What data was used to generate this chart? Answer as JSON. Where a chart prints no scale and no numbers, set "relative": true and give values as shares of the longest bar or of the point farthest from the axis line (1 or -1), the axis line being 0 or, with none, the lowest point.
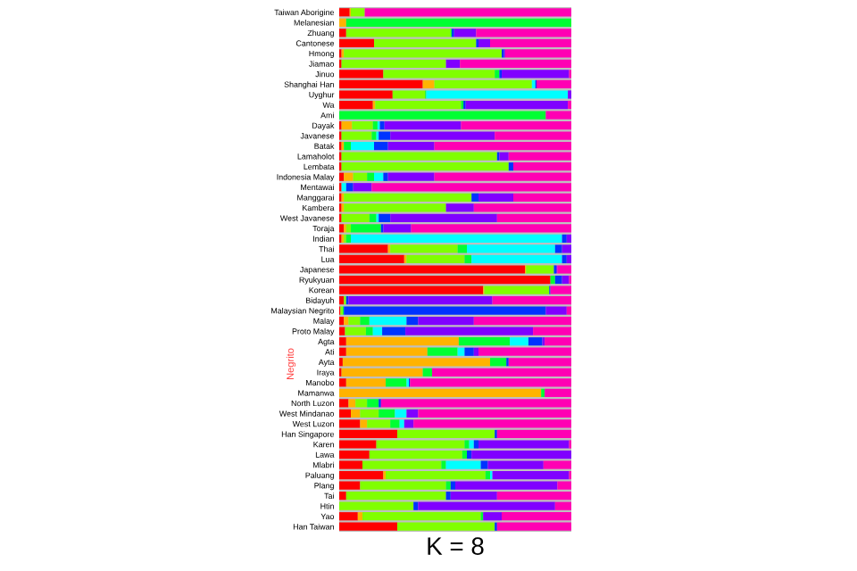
{
  "chart_data": {
    "type": "bar",
    "orientation": "horizontal",
    "stacked": true,
    "relative": true,
    "legend": false,
    "grid": false,
    "xlabel": "K = 8",
    "annotations": [
      "Negrito"
    ],
    "categories": [
      "Taiwan Aborigine",
      "Melanesian",
      "Zhuang",
      "Cantonese",
      "Hmong",
      "Jiamao",
      "Jinuo",
      "Shanghai Han",
      "Uyghur",
      "Wa",
      "Ami",
      "Dayak",
      "Javanese",
      "Batak",
      "Lamaholot",
      "Lembata",
      "Indonesia Malay",
      "Mentawai",
      "Manggarai",
      "Kambera",
      "West Javanese",
      "Toraja",
      "Indian",
      "Thai",
      "Lua",
      "Japanese",
      "Ryukyuan",
      "Korean",
      "Bidayuh",
      "Malaysian Negrito",
      "Malay",
      "Proto Malay",
      "Agta",
      "Ati",
      "Ayta",
      "Iraya",
      "Manobo",
      "Mamanwa",
      "North Luzon",
      "West Mindanao",
      "West Luzon",
      "Han Singapore",
      "Karen",
      "Lawa",
      "Mlabri",
      "Paluang",
      "Plang",
      "Tai",
      "Htin",
      "Yao",
      "Han Taiwan"
    ],
    "series": [
      {
        "color": "#ff0000",
        "values": [
          0.045,
          0,
          0.03,
          0.15,
          0.01,
          0.01,
          0.19,
          0.36,
          0.23,
          0.145,
          0,
          0.01,
          0.01,
          0.01,
          0.01,
          0.01,
          0.02,
          0.01,
          0.01,
          0.01,
          0.01,
          0.02,
          0.01,
          0.21,
          0.28,
          0.8,
          0.91,
          0.62,
          0.02,
          0.005,
          0.02,
          0.025,
          0.03,
          0.03,
          0.015,
          0.01,
          0.03,
          0,
          0.04,
          0.05,
          0.09,
          0.25,
          0.16,
          0.13,
          0.1,
          0.19,
          0.09,
          0.03,
          0,
          0.08,
          0.25
        ]
      },
      {
        "color": "#ffb300",
        "values": [
          0.005,
          0.03,
          0,
          0,
          0.01,
          0,
          0,
          0.05,
          0,
          0.01,
          0,
          0.045,
          0,
          0.01,
          0,
          0,
          0.04,
          0,
          0.01,
          0.01,
          0,
          0.01,
          0.01,
          0.01,
          0.01,
          0.005,
          0,
          0.005,
          0,
          0,
          0.02,
          0,
          0.485,
          0.35,
          0.635,
          0.35,
          0.17,
          0.87,
          0.03,
          0.04,
          0.03,
          0,
          0,
          0,
          0,
          0.01,
          0,
          0,
          0,
          0.02,
          0
        ]
      },
      {
        "color": "#80ff00",
        "values": [
          0.06,
          0,
          0.45,
          0.44,
          0.68,
          0.45,
          0.48,
          0.42,
          0.14,
          0.37,
          0,
          0.09,
          0.13,
          0,
          0.67,
          0.72,
          0.06,
          0,
          0.55,
          0.44,
          0.12,
          0.02,
          0.01,
          0.29,
          0.25,
          0.12,
          0,
          0.28,
          0.01,
          0.01,
          0.05,
          0.09,
          0,
          0,
          0,
          0,
          0,
          0,
          0.05,
          0.08,
          0.1,
          0.42,
          0.38,
          0.4,
          0.34,
          0.43,
          0.37,
          0.43,
          0.32,
          0.51,
          0.42
        ]
      },
      {
        "color": "#00ff33",
        "values": [
          0,
          0.97,
          0.005,
          0,
          0,
          0,
          0.02,
          0,
          0.005,
          0.01,
          0.89,
          0.02,
          0.02,
          0.03,
          0,
          0,
          0.03,
          0,
          0,
          0,
          0.03,
          0.13,
          0.02,
          0.04,
          0.03,
          0,
          0.02,
          0,
          0,
          0.005,
          0.04,
          0.03,
          0.22,
          0.13,
          0.07,
          0.04,
          0.09,
          0.015,
          0.05,
          0.07,
          0.04,
          0,
          0.02,
          0.02,
          0.02,
          0.02,
          0.02,
          0,
          0,
          0.01,
          0
        ]
      },
      {
        "color": "#00ffff",
        "values": [
          0,
          0,
          0,
          0,
          0,
          0,
          0,
          0.015,
          0.61,
          0,
          0,
          0.01,
          0.01,
          0.1,
          0,
          0,
          0.04,
          0.02,
          0,
          0,
          0.01,
          0,
          0.91,
          0.38,
          0.39,
          0,
          0,
          0,
          0,
          0,
          0.16,
          0.04,
          0.08,
          0.03,
          0,
          0,
          0.01,
          0,
          0,
          0.05,
          0.02,
          0,
          0.02,
          0,
          0.15,
          0.01,
          0,
          0,
          0,
          0,
          0
        ]
      },
      {
        "color": "#0033ff",
        "values": [
          0,
          0,
          0.01,
          0.01,
          0.01,
          0,
          0.01,
          0.005,
          0,
          0.01,
          0,
          0.02,
          0.05,
          0.06,
          0.01,
          0.02,
          0.02,
          0.03,
          0.03,
          0,
          0.05,
          0.01,
          0.02,
          0.03,
          0.02,
          0.01,
          0.03,
          0.005,
          0.01,
          0.87,
          0.05,
          0.1,
          0.06,
          0.04,
          0.01,
          0,
          0.005,
          0,
          0.01,
          0,
          0,
          0.01,
          0.02,
          0.02,
          0.03,
          0,
          0.02,
          0.02,
          0.02,
          0,
          0.01
        ]
      },
      {
        "color": "#8000ff",
        "values": [
          0,
          0,
          0.095,
          0.05,
          0.005,
          0.06,
          0.29,
          0,
          0.015,
          0.44,
          0,
          0.33,
          0.45,
          0.2,
          0.04,
          0,
          0.2,
          0.08,
          0.15,
          0.12,
          0.46,
          0.12,
          0.02,
          0.04,
          0.02,
          0.005,
          0.03,
          0,
          0.62,
          0.09,
          0.24,
          0.55,
          0.01,
          0.02,
          0,
          0,
          0,
          0,
          0,
          0.05,
          0.04,
          0,
          0.39,
          0.43,
          0.24,
          0.33,
          0.44,
          0.2,
          0.59,
          0.08,
          0
        ]
      },
      {
        "color": "#ff00b3",
        "values": [
          0.89,
          0,
          0.41,
          0.35,
          0.285,
          0.48,
          0.01,
          0.15,
          0,
          0.015,
          0.11,
          0.475,
          0.33,
          0.59,
          0.27,
          0.25,
          0.59,
          0.86,
          0.25,
          0.42,
          0.32,
          0.69,
          0,
          0,
          0,
          0.06,
          0.01,
          0.09,
          0.34,
          0.02,
          0.42,
          0.165,
          0.115,
          0.4,
          0.27,
          0.6,
          0.695,
          0.115,
          0.82,
          0.66,
          0.68,
          0.32,
          0.01,
          0,
          0.12,
          0.01,
          0.06,
          0.32,
          0.07,
          0.3,
          0.32
        ]
      }
    ]
  }
}
